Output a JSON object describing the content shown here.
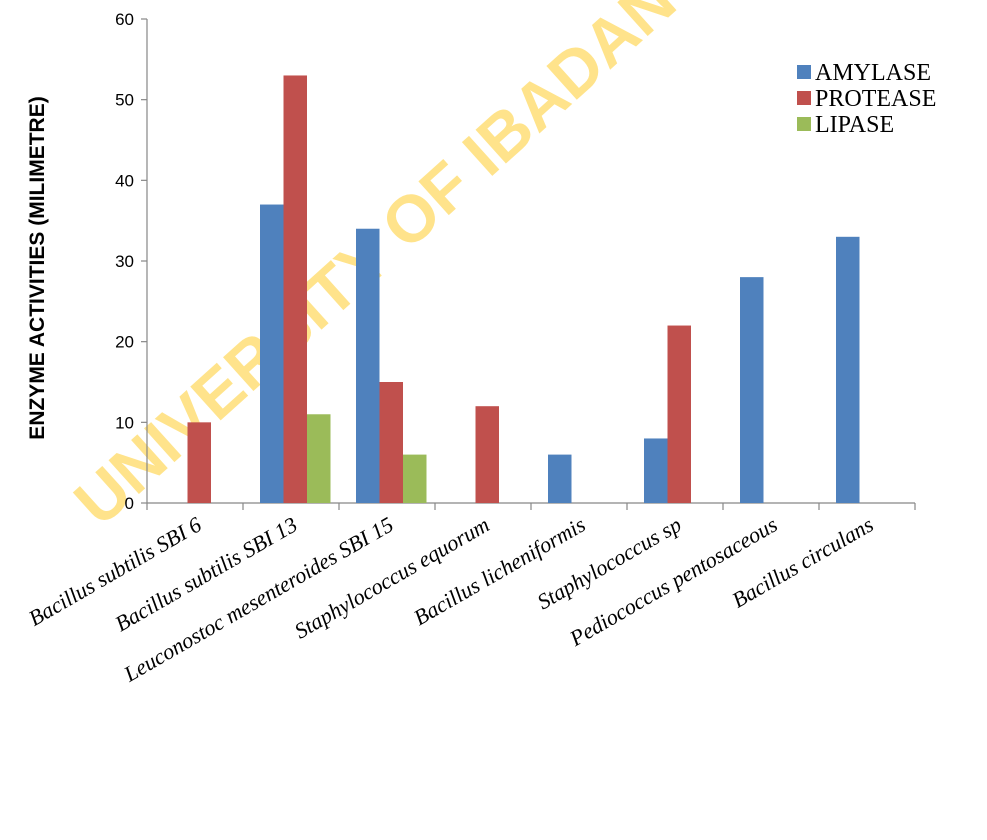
{
  "watermark": "UNIVERSITY OF IBADAN",
  "chart_data": {
    "type": "bar",
    "ylabel": "ENZYME  ACTIVITIES (MILIMETRE)",
    "xlabel": "",
    "ylim": [
      0,
      60
    ],
    "yticks": [
      0,
      10,
      20,
      30,
      40,
      50,
      60
    ],
    "grid": false,
    "legend_position": "top-right",
    "categories": [
      "Bacillus subtilis SBI 6",
      "Bacillus subtilis SBI 13",
      "Leuconostoc mesenteroides SBI 15",
      "Staphylococcus equorum",
      "Bacillus licheniformis",
      "Staphylococcus sp",
      "Pediococcus pentosaceous",
      "Bacillus circulans"
    ],
    "series": [
      {
        "name": "AMYLASE",
        "color": "#4F81BD",
        "values": [
          0,
          37,
          34,
          0,
          6,
          8,
          28,
          33
        ]
      },
      {
        "name": "PROTEASE",
        "color": "#C0504D",
        "values": [
          10,
          53,
          15,
          12,
          0,
          22,
          0,
          0
        ]
      },
      {
        "name": "LIPASE",
        "color": "#9BBB59",
        "values": [
          0,
          11,
          6,
          0,
          0,
          0,
          0,
          0
        ]
      }
    ]
  }
}
